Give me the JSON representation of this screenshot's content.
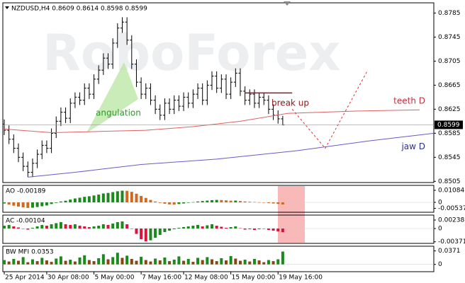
{
  "chart_data": [
    {
      "type": "ohlc",
      "title": "NZDUSD,H4 0.8609 0.8614 0.8598 0.8599",
      "watermark": "RoboForex",
      "color": "#000000",
      "open": [
        0.86,
        0.859,
        0.8575,
        0.856,
        0.8545,
        0.853,
        0.852,
        0.8535,
        0.855,
        0.8565,
        0.856,
        0.8585,
        0.8605,
        0.862,
        0.861,
        0.8635,
        0.8645,
        0.864,
        0.866,
        0.865,
        0.8675,
        0.869,
        0.871,
        0.87,
        0.8735,
        0.876,
        0.877,
        0.874,
        0.87,
        0.867,
        0.865,
        0.866,
        0.864,
        0.8625,
        0.8615,
        0.8635,
        0.8625,
        0.864,
        0.863,
        0.8645,
        0.8635,
        0.865,
        0.866,
        0.864,
        0.8665,
        0.868,
        0.866,
        0.8675,
        0.865,
        0.867,
        0.8685,
        0.8655,
        0.864,
        0.865,
        0.8635,
        0.8645,
        0.864,
        0.8625,
        0.8615,
        0.8609
      ],
      "high": [
        0.8608,
        0.8598,
        0.8583,
        0.8568,
        0.8553,
        0.8538,
        0.8543,
        0.8558,
        0.8573,
        0.8573,
        0.8593,
        0.8613,
        0.8628,
        0.8628,
        0.8643,
        0.8653,
        0.8653,
        0.8668,
        0.8668,
        0.8683,
        0.8698,
        0.8718,
        0.8718,
        0.8743,
        0.8768,
        0.8778,
        0.8778,
        0.8748,
        0.8708,
        0.8678,
        0.8668,
        0.8668,
        0.8648,
        0.8633,
        0.8643,
        0.8643,
        0.8648,
        0.8648,
        0.8653,
        0.8653,
        0.8658,
        0.8668,
        0.8668,
        0.8673,
        0.8688,
        0.8688,
        0.8683,
        0.8683,
        0.8678,
        0.8693,
        0.8693,
        0.8663,
        0.8658,
        0.8658,
        0.8653,
        0.8653,
        0.8648,
        0.8633,
        0.8623,
        0.8614
      ],
      "low": [
        0.8582,
        0.8567,
        0.8552,
        0.8537,
        0.8522,
        0.8512,
        0.8512,
        0.8527,
        0.8542,
        0.8552,
        0.8552,
        0.8577,
        0.8597,
        0.8602,
        0.8602,
        0.8627,
        0.8632,
        0.8632,
        0.8642,
        0.8642,
        0.8667,
        0.8682,
        0.8692,
        0.8692,
        0.8727,
        0.8752,
        0.8732,
        0.8692,
        0.8662,
        0.8642,
        0.8642,
        0.8632,
        0.8617,
        0.8607,
        0.8607,
        0.8617,
        0.8617,
        0.8622,
        0.8622,
        0.8627,
        0.8627,
        0.8642,
        0.8632,
        0.8632,
        0.8657,
        0.8652,
        0.8652,
        0.8642,
        0.8642,
        0.8662,
        0.8647,
        0.8632,
        0.8632,
        0.8627,
        0.8627,
        0.8632,
        0.8617,
        0.8607,
        0.8601,
        0.8598
      ],
      "close": [
        0.859,
        0.8575,
        0.856,
        0.8545,
        0.853,
        0.852,
        0.8535,
        0.855,
        0.8565,
        0.856,
        0.8585,
        0.8605,
        0.862,
        0.861,
        0.8635,
        0.8645,
        0.864,
        0.866,
        0.865,
        0.8675,
        0.869,
        0.871,
        0.87,
        0.8735,
        0.876,
        0.877,
        0.874,
        0.87,
        0.867,
        0.865,
        0.866,
        0.864,
        0.8625,
        0.8615,
        0.8635,
        0.8625,
        0.864,
        0.863,
        0.8645,
        0.8635,
        0.865,
        0.866,
        0.864,
        0.8665,
        0.868,
        0.866,
        0.8675,
        0.865,
        0.867,
        0.8685,
        0.8655,
        0.864,
        0.865,
        0.8635,
        0.8645,
        0.864,
        0.8625,
        0.8615,
        0.8609,
        0.8599
      ],
      "xlim": [
        -0.3,
        91
      ],
      "xticks": [
        {
          "value": 0,
          "label": "25 Apr 2014"
        },
        {
          "value": 9,
          "label": "30 Apr 08:00"
        },
        {
          "value": 19,
          "label": "5 May 00:00"
        },
        {
          "value": 29,
          "label": "7 May 16:00"
        },
        {
          "value": 38,
          "label": "12 May 08:00"
        },
        {
          "value": 48,
          "label": "15 May 00:00"
        },
        {
          "value": 58,
          "label": "19 May 16:00"
        }
      ],
      "ylim": [
        0.8503,
        0.8802
      ],
      "yticks": [
        0.8785,
        0.8745,
        0.8705,
        0.8665,
        0.8625,
        0.8585,
        0.8545,
        0.8505
      ],
      "last_price": 0.8599,
      "lines": [
        {
          "name": "teeth D",
          "color": "#e06060",
          "x": [
            0,
            10,
            20,
            30,
            40,
            50,
            60,
            75,
            88
          ],
          "values": [
            0.8592,
            0.8586,
            0.8588,
            0.859,
            0.8596,
            0.8605,
            0.8618,
            0.8622,
            0.8624
          ]
        },
        {
          "name": "jaw D",
          "color": "#6a5acd",
          "x": [
            5,
            15,
            29,
            45,
            62,
            77,
            91
          ],
          "values": [
            0.8512,
            0.852,
            0.8533,
            0.8542,
            0.8556,
            0.8572,
            0.8585
          ]
        }
      ],
      "paths": [
        {
          "color": "#e03030",
          "dash": true,
          "x": [
            61,
            68,
            77
          ],
          "values": [
            0.8625,
            0.856,
            0.869
          ]
        },
        {
          "color": "#8b1a1a",
          "dash": false,
          "x": [
            51,
            61
          ],
          "values": [
            0.8652,
            0.8652
          ]
        }
      ],
      "annotations": [
        "angulation",
        "break up"
      ]
    },
    {
      "type": "bar",
      "title": "AO -0.00189",
      "up_color": "#1a8a1a",
      "down_color": "#d2691e",
      "values": [
        -0.001,
        -0.002,
        -0.003,
        -0.0038,
        -0.0045,
        -0.005,
        -0.0048,
        -0.0042,
        -0.0035,
        -0.0028,
        -0.0015,
        -0.0005,
        0.0008,
        0.0015,
        0.0025,
        0.0035,
        0.0042,
        0.005,
        0.0055,
        0.0062,
        0.007,
        0.008,
        0.0085,
        0.0092,
        0.01,
        0.0105,
        0.0104,
        0.0095,
        0.0078,
        0.0058,
        0.004,
        0.0022,
        0.0008,
        -0.0005,
        -0.0012,
        -0.0018,
        -0.002,
        -0.0015,
        -0.001,
        -0.0004,
        0.0002,
        0.0008,
        0.0012,
        0.0016,
        0.002,
        0.0022,
        0.0021,
        0.0018,
        0.0015,
        0.0016,
        0.0012,
        0.0008,
        0.0005,
        0.0003,
        0.0001,
        -0.0002,
        -0.0006,
        -0.001,
        -0.0014,
        -0.00189
      ],
      "ylim": [
        -0.0089,
        0.0153
      ],
      "yticks": [
        0.01084,
        0,
        -0.00537
      ]
    },
    {
      "type": "bar",
      "title": "AC -0.00104",
      "up_color": "#1a8a1a",
      "down_color": "#dc143c",
      "values": [
        0.0008,
        0.001,
        0.0006,
        0.0003,
        0.0,
        -0.0003,
        0.0002,
        0.0006,
        0.001,
        0.0008,
        0.0012,
        0.0015,
        0.0018,
        0.0012,
        0.001,
        0.0012,
        0.0008,
        0.0006,
        0.0004,
        0.0006,
        0.0008,
        0.0012,
        0.001,
        0.0014,
        0.0018,
        0.002,
        0.0012,
        0.0,
        -0.0015,
        -0.003,
        -0.0036,
        -0.0033,
        -0.0026,
        -0.0018,
        -0.001,
        -0.0006,
        -0.0002,
        0.0002,
        0.0004,
        0.0006,
        0.0008,
        0.001,
        0.0006,
        0.0009,
        0.0012,
        0.0008,
        0.0005,
        0.0002,
        0.0004,
        0.0006,
        0.0001,
        -0.0003,
        -0.0002,
        -0.0004,
        -0.0002,
        -0.0001,
        -0.0004,
        -0.0006,
        -0.0008,
        -0.00104
      ],
      "ylim": [
        -0.00416,
        0.00377
      ],
      "yticks": [
        0.00238,
        0,
        -0.00371
      ]
    },
    {
      "type": "bar",
      "title": "BW MFI 0.0353",
      "up_color": "#1a8a1a",
      "down_color": "#8b4513",
      "values": [
        0.012,
        0.008,
        0.015,
        0.01,
        0.02,
        0.006,
        0.014,
        0.009,
        0.018,
        0.011,
        0.007,
        0.016,
        0.022,
        0.01,
        0.013,
        0.008,
        0.019,
        0.025,
        0.012,
        0.009,
        0.017,
        0.028,
        0.014,
        0.02,
        0.032,
        0.018,
        0.024,
        0.015,
        0.01,
        0.021,
        0.012,
        0.008,
        0.016,
        0.011,
        0.019,
        0.009,
        0.013,
        0.022,
        0.01,
        0.015,
        0.007,
        0.018,
        0.012,
        0.02,
        0.014,
        0.009,
        0.017,
        0.011,
        0.023,
        0.016,
        0.01,
        0.013,
        0.008,
        0.015,
        0.011,
        0.006,
        0.012,
        0.009,
        0.014,
        0.0353
      ],
      "ylim": [
        -0.02,
        0.05
      ],
      "yticks": [
        0.0371,
        0
      ]
    }
  ]
}
